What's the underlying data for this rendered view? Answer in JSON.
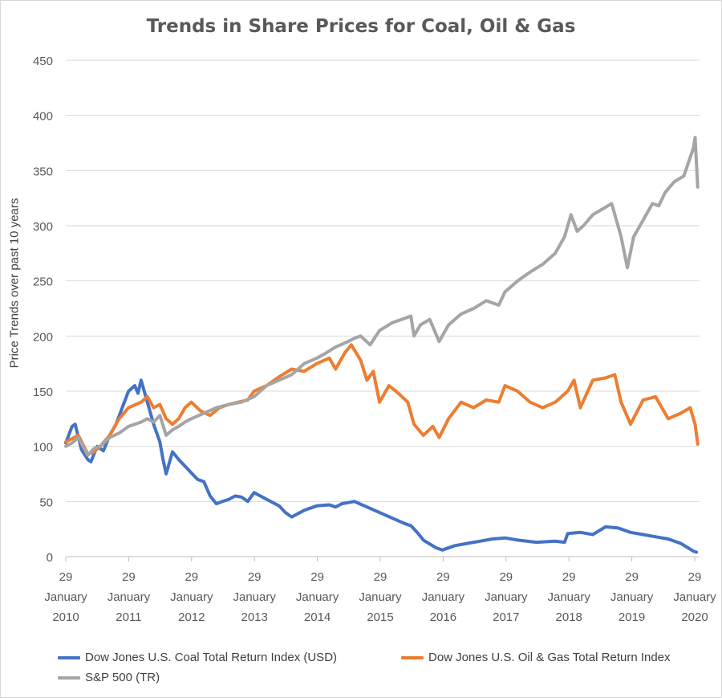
{
  "chart_data": {
    "type": "line",
    "title": "Trends in Share Prices for Coal, Oil & Gas",
    "ylabel": "Price Trends over past 10 years",
    "xlabel": "",
    "ylim": [
      0,
      450
    ],
    "y_ticks": [
      0,
      50,
      100,
      150,
      200,
      250,
      300,
      350,
      400,
      450
    ],
    "x_tick_labels": [
      [
        "29",
        "January",
        "2010"
      ],
      [
        "29",
        "January",
        "2011"
      ],
      [
        "29",
        "January",
        "2012"
      ],
      [
        "29",
        "January",
        "2013"
      ],
      [
        "29",
        "January",
        "2014"
      ],
      [
        "29",
        "January",
        "2015"
      ],
      [
        "29",
        "January",
        "2016"
      ],
      [
        "29",
        "January",
        "2017"
      ],
      [
        "29",
        "January",
        "2018"
      ],
      [
        "29",
        "January",
        "2019"
      ],
      [
        "29",
        "January",
        "2020"
      ]
    ],
    "xlim": [
      2010,
      2020.1
    ],
    "grid": "horizontal",
    "legend_position": "bottom",
    "series": [
      {
        "name": "Dow Jones U.S. Coal Total Return Index (USD)",
        "color": "#4472c4",
        "x": [
          2010.0,
          2010.1,
          2010.15,
          2010.25,
          2010.35,
          2010.4,
          2010.5,
          2010.6,
          2010.7,
          2010.8,
          2010.9,
          2011.0,
          2011.1,
          2011.15,
          2011.2,
          2011.3,
          2011.4,
          2011.45,
          2011.5,
          2011.55,
          2011.6,
          2011.7,
          2011.8,
          2011.9,
          2012.0,
          2012.1,
          2012.2,
          2012.3,
          2012.4,
          2012.5,
          2012.6,
          2012.7,
          2012.8,
          2012.9,
          2013.0,
          2013.2,
          2013.4,
          2013.5,
          2013.6,
          2013.8,
          2014.0,
          2014.2,
          2014.3,
          2014.4,
          2014.6,
          2014.8,
          2015.0,
          2015.2,
          2015.4,
          2015.5,
          2015.6,
          2015.7,
          2015.9,
          2016.0,
          2016.2,
          2016.4,
          2016.6,
          2016.8,
          2017.0,
          2017.2,
          2017.5,
          2017.8,
          2017.95,
          2018.0,
          2018.2,
          2018.4,
          2018.6,
          2018.8,
          2019.0,
          2019.2,
          2019.4,
          2019.6,
          2019.8,
          2020.0,
          2020.05
        ],
        "values": [
          103,
          118,
          120,
          97,
          88,
          86,
          100,
          96,
          110,
          120,
          135,
          150,
          155,
          148,
          160,
          140,
          120,
          112,
          104,
          88,
          75,
          95,
          88,
          82,
          76,
          70,
          68,
          55,
          48,
          50,
          52,
          55,
          54,
          50,
          58,
          52,
          46,
          40,
          36,
          42,
          46,
          47,
          45,
          48,
          50,
          45,
          40,
          35,
          30,
          28,
          22,
          15,
          8,
          6,
          10,
          12,
          14,
          16,
          17,
          15,
          13,
          14,
          13,
          21,
          22,
          20,
          27,
          26,
          22,
          20,
          18,
          16,
          12,
          5,
          4
        ]
      },
      {
        "name": "Dow Jones U.S. Oil & Gas Total Return Index",
        "color": "#ed7d31",
        "x": [
          2010.0,
          2010.1,
          2010.2,
          2010.35,
          2010.45,
          2010.55,
          2010.7,
          2010.85,
          2011.0,
          2011.2,
          2011.3,
          2011.4,
          2011.5,
          2011.6,
          2011.7,
          2011.8,
          2011.9,
          2012.0,
          2012.15,
          2012.3,
          2012.45,
          2012.6,
          2012.75,
          2012.9,
          2013.0,
          2013.2,
          2013.4,
          2013.6,
          2013.8,
          2014.0,
          2014.2,
          2014.3,
          2014.45,
          2014.55,
          2014.7,
          2014.8,
          2014.9,
          2015.0,
          2015.15,
          2015.3,
          2015.45,
          2015.55,
          2015.7,
          2015.85,
          2015.95,
          2016.1,
          2016.3,
          2016.5,
          2016.7,
          2016.9,
          2017.0,
          2017.2,
          2017.4,
          2017.6,
          2017.8,
          2018.0,
          2018.1,
          2018.2,
          2018.4,
          2018.6,
          2018.75,
          2018.85,
          2019.0,
          2019.2,
          2019.4,
          2019.6,
          2019.8,
          2019.95,
          2020.03,
          2020.07
        ],
        "values": [
          104,
          107,
          110,
          93,
          95,
          100,
          110,
          125,
          135,
          140,
          145,
          135,
          138,
          125,
          120,
          125,
          135,
          140,
          132,
          128,
          135,
          138,
          140,
          142,
          150,
          155,
          163,
          170,
          168,
          175,
          180,
          170,
          185,
          192,
          178,
          160,
          168,
          140,
          155,
          148,
          140,
          120,
          110,
          118,
          108,
          125,
          140,
          135,
          142,
          140,
          155,
          150,
          140,
          135,
          140,
          150,
          160,
          135,
          160,
          162,
          165,
          140,
          120,
          142,
          145,
          125,
          130,
          135,
          120,
          102
        ]
      },
      {
        "name": "S&P 500 (TR)",
        "color": "#a5a5a5",
        "x": [
          2010.0,
          2010.1,
          2010.2,
          2010.35,
          2010.45,
          2010.55,
          2010.7,
          2010.85,
          2011.0,
          2011.2,
          2011.3,
          2011.4,
          2011.5,
          2011.6,
          2011.7,
          2011.8,
          2011.9,
          2012.0,
          2012.2,
          2012.4,
          2012.6,
          2012.8,
          2013.0,
          2013.2,
          2013.4,
          2013.6,
          2013.8,
          2014.0,
          2014.1,
          2014.3,
          2014.5,
          2014.6,
          2014.7,
          2014.85,
          2015.0,
          2015.2,
          2015.4,
          2015.5,
          2015.55,
          2015.65,
          2015.8,
          2015.95,
          2016.1,
          2016.3,
          2016.5,
          2016.7,
          2016.9,
          2017.0,
          2017.2,
          2017.4,
          2017.6,
          2017.8,
          2017.95,
          2018.05,
          2018.15,
          2018.25,
          2018.4,
          2018.55,
          2018.7,
          2018.85,
          2018.95,
          2019.05,
          2019.2,
          2019.35,
          2019.45,
          2019.55,
          2019.7,
          2019.85,
          2020.0,
          2020.03,
          2020.07
        ],
        "values": [
          100,
          103,
          108,
          92,
          98,
          100,
          108,
          112,
          118,
          122,
          125,
          122,
          128,
          110,
          115,
          118,
          122,
          125,
          130,
          135,
          138,
          140,
          145,
          155,
          160,
          165,
          175,
          180,
          183,
          190,
          195,
          198,
          200,
          192,
          205,
          212,
          216,
          218,
          200,
          210,
          215,
          195,
          210,
          220,
          225,
          232,
          228,
          240,
          250,
          258,
          265,
          275,
          290,
          310,
          295,
          300,
          310,
          315,
          320,
          290,
          262,
          290,
          305,
          320,
          318,
          330,
          340,
          345,
          370,
          380,
          335
        ]
      }
    ]
  }
}
